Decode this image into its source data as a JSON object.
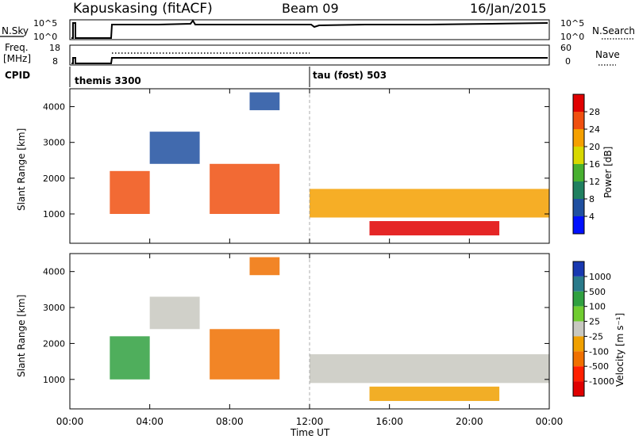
{
  "header": {
    "station": "Kapuskasing (fitACF)",
    "beam": "Beam 09",
    "date": "16/Jan/2015"
  },
  "noise_panel": {
    "left_label": "N.Sky",
    "left_ticks": [
      "10^5",
      "10^0"
    ],
    "right_ticks": [
      "10^5",
      "10^0"
    ],
    "right_label": "N.Search",
    "right_label_style": "dotted"
  },
  "freq_panel": {
    "left_label_1": "Freq.",
    "left_label_2": "[MHz]",
    "left_ticks": [
      "18",
      "8"
    ],
    "right_ticks": [
      "60",
      "0"
    ],
    "right_label": "Nave",
    "right_label_style": "dotted"
  },
  "cpid_panel": {
    "label": "CPID",
    "programs": [
      {
        "name": "themis",
        "id": "3300",
        "start_hour": 0
      },
      {
        "name": "tau (fost)",
        "id": "503",
        "start_hour": 12
      }
    ]
  },
  "power_panel": {
    "ylabel": "Slant Range [km]",
    "yticks": [
      "4000",
      "3000",
      "2000",
      "1000"
    ],
    "colorbar_label": "Power [dB]",
    "colorbar_ticks": [
      "28",
      "24",
      "20",
      "16",
      "12",
      "8",
      "4"
    ],
    "colorbar_colors": [
      "#e00000",
      "#f05010",
      "#f5a000",
      "#d8d800",
      "#48b030",
      "#208060",
      "#2050a0",
      "#0010ff"
    ]
  },
  "velocity_panel": {
    "ylabel": "Slant Range [km]",
    "yticks": [
      "4000",
      "3000",
      "2000",
      "1000"
    ],
    "colorbar_label": "Velocity [m s⁻¹]",
    "colorbar_ticks": [
      "1000",
      "500",
      "100",
      "25",
      "-25",
      "-100",
      "-500",
      "-1000"
    ],
    "colorbar_colors": [
      "#1838b0",
      "#2a7a8a",
      "#30a040",
      "#70cc30",
      "#c8c8c0",
      "#f0a000",
      "#f07000",
      "#ff2000",
      "#e00000"
    ]
  },
  "x_axis": {
    "ticks": [
      "00:00",
      "04:00",
      "08:00",
      "12:00",
      "16:00",
      "20:00",
      "00:00"
    ],
    "label": "Time UT"
  },
  "chart_data": {
    "type": "heatmap",
    "title": "Kapuskasing (fitACF)",
    "subtitle": "Beam 09",
    "date": "16/Jan/2015",
    "xlabel": "Time UT",
    "ylabel": "Slant Range [km]",
    "xlim_hours": [
      0,
      24
    ],
    "ylim_km": [
      180,
      4500
    ],
    "panels": [
      "Power [dB]",
      "Velocity [m s⁻¹]"
    ],
    "echo_regions": [
      {
        "t0": 2.0,
        "t1": 4.0,
        "r0": 1000,
        "r1": 2200,
        "power_db": 26,
        "velocity": 100
      },
      {
        "t0": 4.0,
        "t1": 6.5,
        "r0": 2400,
        "r1": 3300,
        "power_db": 6,
        "velocity": 25
      },
      {
        "t0": 7.0,
        "t1": 10.5,
        "r0": 1000,
        "r1": 2400,
        "power_db": 24,
        "velocity": -100
      },
      {
        "t0": 9.0,
        "t1": 10.5,
        "r0": 3900,
        "r1": 4400,
        "power_db": 6,
        "velocity": -100
      },
      {
        "t0": 12.0,
        "t1": 24.0,
        "r0": 900,
        "r1": 1700,
        "power_db": 20,
        "velocity": 0
      },
      {
        "t0": 15.0,
        "t1": 21.5,
        "r0": 400,
        "r1": 800,
        "power_db": 28,
        "velocity": -25
      }
    ]
  }
}
